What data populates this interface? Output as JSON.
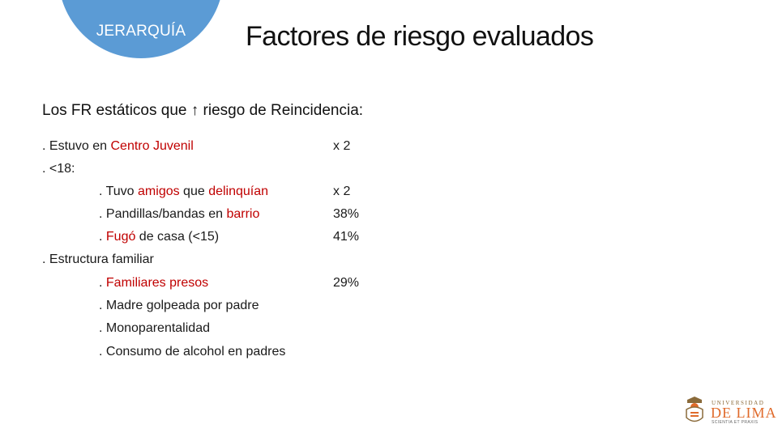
{
  "header": {
    "badge_label": "JERARQUÍA",
    "title": "Factores de riesgo evaluados"
  },
  "subtitle": "Los FR estáticos que ↑ riesgo de Reincidencia:",
  "items": {
    "centro": {
      "prefix": ". Estuvo en ",
      "highlight": "Centro Juvenil",
      "value": "x 2"
    },
    "menor18": {
      "text": ". <18:"
    },
    "amigos": {
      "p1": ". Tuvo ",
      "h1": "amigos",
      "p2": " que ",
      "h2": "delinquían",
      "value": "x 2"
    },
    "pandillas": {
      "p1": ". Pandillas/bandas en ",
      "h1": "barrio",
      "value": "38%"
    },
    "fugo": {
      "p1": ". ",
      "h1": "Fugó",
      "p2": " de casa (<15)",
      "value": "41%"
    },
    "estructura": {
      "text": ". Estructura familiar"
    },
    "familiares": {
      "p1": ". ",
      "h1": "Familiares presos",
      "value": "29%"
    },
    "madre": {
      "text": ". Madre golpeada por padre"
    },
    "mono": {
      "text": ". Monoparentalidad"
    },
    "alcohol": {
      "text": ". Consumo de alcohol en padres"
    }
  },
  "logo": {
    "line1": "UNIVERSIDAD",
    "line2": "DE LIMA",
    "motto": "SCIENTIA ET PRAXIS"
  },
  "colors": {
    "badge": "#5b9bd5",
    "highlight": "#c00000",
    "logo_accent": "#e06a2a"
  }
}
